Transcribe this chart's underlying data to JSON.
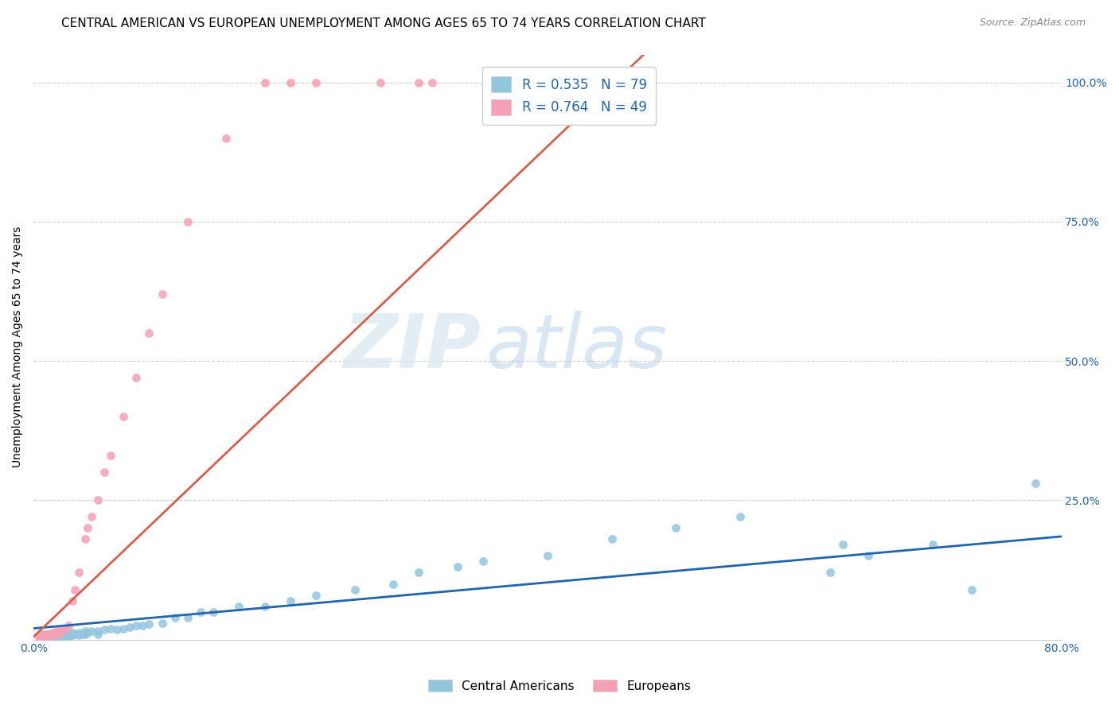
{
  "title": "CENTRAL AMERICAN VS EUROPEAN UNEMPLOYMENT AMONG AGES 65 TO 74 YEARS CORRELATION CHART",
  "source": "Source: ZipAtlas.com",
  "ylabel": "Unemployment Among Ages 65 to 74 years",
  "xlim": [
    0.0,
    0.8
  ],
  "ylim": [
    0.0,
    1.05
  ],
  "x_tick_positions": [
    0.0,
    0.1,
    0.2,
    0.3,
    0.4,
    0.5,
    0.6,
    0.7,
    0.8
  ],
  "x_tick_labels": [
    "0.0%",
    "",
    "",
    "",
    "",
    "",
    "",
    "",
    "80.0%"
  ],
  "y_tick_positions": [
    0.0,
    0.25,
    0.5,
    0.75,
    1.0
  ],
  "y_tick_labels_right": [
    "",
    "25.0%",
    "50.0%",
    "75.0%",
    "100.0%"
  ],
  "blue_color": "#92c5de",
  "pink_color": "#f4a0b5",
  "blue_line_color": "#2166ac",
  "pink_line_color": "#d6604d",
  "legend_R_blue": "R = 0.535",
  "legend_N_blue": "N = 79",
  "legend_R_pink": "R = 0.764",
  "legend_N_pink": "N = 49",
  "watermark_zip": "ZIP",
  "watermark_atlas": "atlas",
  "grid_color": "#d0d0d0",
  "background_color": "#ffffff",
  "title_fontsize": 11,
  "axis_label_fontsize": 10,
  "tick_fontsize": 10,
  "legend_fontsize": 12,
  "blue_line_x0": 0.0,
  "blue_line_y0": 0.02,
  "blue_line_x1": 0.8,
  "blue_line_y1": 0.185,
  "pink_line_x0": 0.0,
  "pink_line_y0": 0.005,
  "pink_line_x1": 0.475,
  "pink_line_y1": 1.05,
  "blue_x": [
    0.005,
    0.005,
    0.006,
    0.007,
    0.008,
    0.008,
    0.009,
    0.01,
    0.01,
    0.01,
    0.01,
    0.012,
    0.012,
    0.013,
    0.013,
    0.014,
    0.015,
    0.015,
    0.016,
    0.016,
    0.017,
    0.017,
    0.018,
    0.018,
    0.019,
    0.02,
    0.02,
    0.02,
    0.022,
    0.022,
    0.025,
    0.025,
    0.025,
    0.028,
    0.028,
    0.03,
    0.03,
    0.032,
    0.035,
    0.035,
    0.038,
    0.04,
    0.04,
    0.042,
    0.045,
    0.05,
    0.05,
    0.055,
    0.06,
    0.065,
    0.07,
    0.075,
    0.08,
    0.085,
    0.09,
    0.1,
    0.11,
    0.12,
    0.13,
    0.14,
    0.16,
    0.18,
    0.2,
    0.22,
    0.25,
    0.28,
    0.3,
    0.33,
    0.35,
    0.4,
    0.45,
    0.5,
    0.55,
    0.62,
    0.63,
    0.65,
    0.7,
    0.73,
    0.78
  ],
  "blue_y": [
    0.01,
    0.005,
    0.008,
    0.006,
    0.01,
    0.004,
    0.007,
    0.01,
    0.005,
    0.008,
    0.003,
    0.008,
    0.004,
    0.01,
    0.005,
    0.007,
    0.01,
    0.005,
    0.008,
    0.004,
    0.01,
    0.006,
    0.008,
    0.003,
    0.007,
    0.01,
    0.005,
    0.008,
    0.01,
    0.006,
    0.01,
    0.007,
    0.005,
    0.01,
    0.006,
    0.012,
    0.008,
    0.01,
    0.012,
    0.008,
    0.01,
    0.015,
    0.01,
    0.012,
    0.015,
    0.015,
    0.01,
    0.018,
    0.02,
    0.018,
    0.02,
    0.022,
    0.025,
    0.025,
    0.028,
    0.03,
    0.04,
    0.04,
    0.05,
    0.05,
    0.06,
    0.06,
    0.07,
    0.08,
    0.09,
    0.1,
    0.12,
    0.13,
    0.14,
    0.15,
    0.18,
    0.2,
    0.22,
    0.12,
    0.17,
    0.15,
    0.17,
    0.09,
    0.28
  ],
  "pink_x": [
    0.004,
    0.005,
    0.006,
    0.007,
    0.007,
    0.008,
    0.008,
    0.009,
    0.009,
    0.01,
    0.01,
    0.01,
    0.011,
    0.012,
    0.012,
    0.013,
    0.014,
    0.015,
    0.016,
    0.017,
    0.018,
    0.019,
    0.02,
    0.02,
    0.022,
    0.025,
    0.027,
    0.03,
    0.032,
    0.035,
    0.04,
    0.042,
    0.045,
    0.05,
    0.055,
    0.06,
    0.07,
    0.08,
    0.09,
    0.1,
    0.12,
    0.15,
    0.18,
    0.2,
    0.22,
    0.27,
    0.3,
    0.31,
    0.42
  ],
  "pink_y": [
    0.004,
    0.006,
    0.005,
    0.008,
    0.005,
    0.007,
    0.004,
    0.008,
    0.005,
    0.01,
    0.007,
    0.004,
    0.01,
    0.008,
    0.005,
    0.01,
    0.008,
    0.012,
    0.01,
    0.012,
    0.015,
    0.014,
    0.015,
    0.01,
    0.018,
    0.02,
    0.025,
    0.07,
    0.09,
    0.12,
    0.18,
    0.2,
    0.22,
    0.25,
    0.3,
    0.33,
    0.4,
    0.47,
    0.55,
    0.62,
    0.75,
    0.9,
    1.0,
    1.0,
    1.0,
    1.0,
    1.0,
    1.0,
    1.0
  ]
}
